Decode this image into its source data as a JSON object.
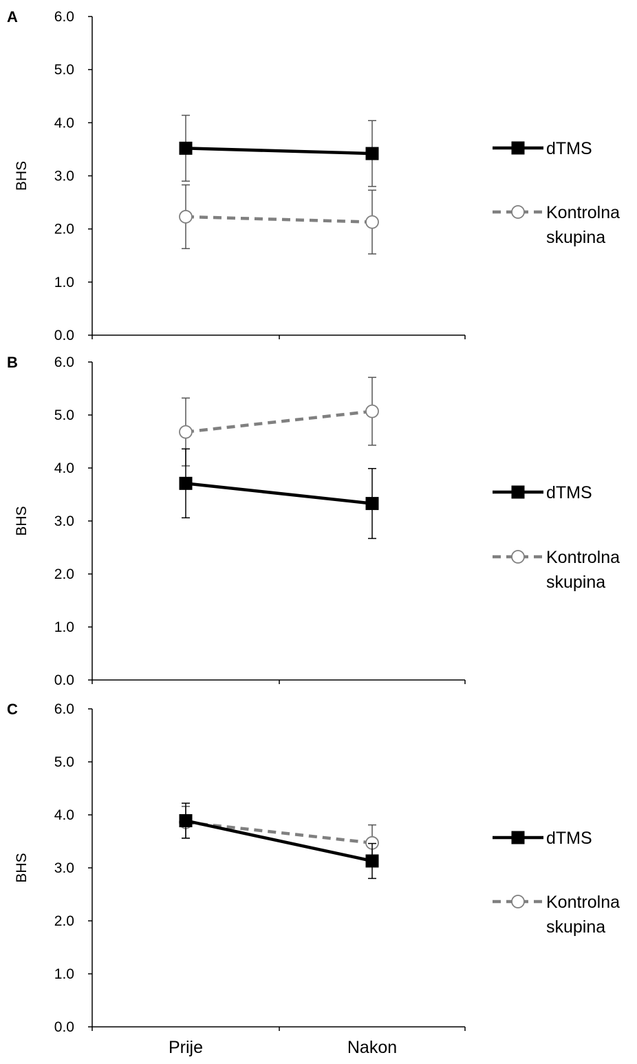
{
  "chart_data": [
    {
      "type": "line",
      "panel_label": "A",
      "ylabel": "BHS",
      "ylim": [
        0,
        6
      ],
      "yticks": [
        "0.0",
        "1.0",
        "2.0",
        "3.0",
        "4.0",
        "5.0",
        "6.0"
      ],
      "categories": [
        "Prije",
        "Nakon"
      ],
      "series": [
        {
          "name": "dTMS",
          "values": [
            3.52,
            3.42
          ],
          "errors": [
            0.62,
            0.62
          ],
          "color": "#000000",
          "marker": "filled-square",
          "line": "solid"
        },
        {
          "name": "Kontrolna skupina",
          "values": [
            2.23,
            2.13
          ],
          "errors": [
            0.6,
            0.6
          ],
          "color": "#808080",
          "marker": "open-circle",
          "line": "dashed"
        }
      ]
    },
    {
      "type": "line",
      "panel_label": "B",
      "ylabel": "BHS",
      "ylim": [
        0,
        6
      ],
      "yticks": [
        "0.0",
        "1.0",
        "2.0",
        "3.0",
        "4.0",
        "5.0",
        "6.0"
      ],
      "categories": [
        "Prije",
        "Nakon"
      ],
      "series": [
        {
          "name": "dTMS",
          "values": [
            3.71,
            3.33
          ],
          "errors": [
            0.65,
            0.66
          ],
          "color": "#000000",
          "marker": "filled-square",
          "line": "solid"
        },
        {
          "name": "Kontrolna skupina",
          "values": [
            4.68,
            5.07
          ],
          "errors": [
            0.64,
            0.64
          ],
          "color": "#808080",
          "marker": "open-circle",
          "line": "dashed"
        }
      ]
    },
    {
      "type": "line",
      "panel_label": "C",
      "ylabel": "BHS",
      "ylim": [
        0,
        6
      ],
      "yticks": [
        "0.0",
        "1.0",
        "2.0",
        "3.0",
        "4.0",
        "5.0",
        "6.0"
      ],
      "categories": [
        "Prije",
        "Nakon"
      ],
      "series": [
        {
          "name": "dTMS",
          "values": [
            3.89,
            3.13
          ],
          "errors": [
            0.33,
            0.33
          ],
          "color": "#000000",
          "marker": "filled-square",
          "line": "solid"
        },
        {
          "name": "Kontrolna skupina",
          "values": [
            3.86,
            3.47
          ],
          "errors": [
            0.3,
            0.34
          ],
          "color": "#808080",
          "marker": "open-circle",
          "line": "dashed"
        }
      ]
    }
  ],
  "legend": {
    "dtms_label": "dTMS",
    "control_label_line1": "Kontrolna",
    "control_label_line2": "skupina"
  }
}
